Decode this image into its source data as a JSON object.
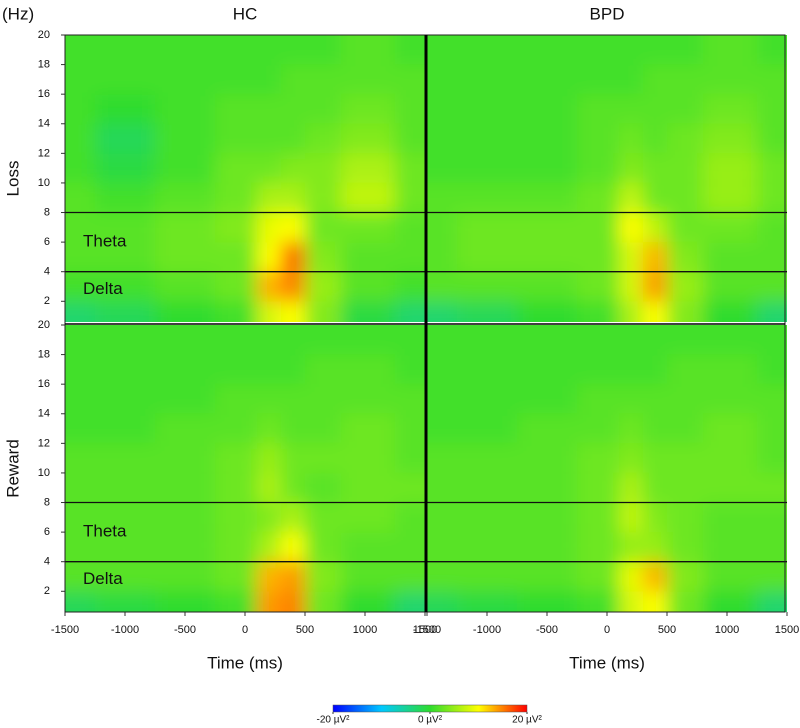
{
  "chart_data": [
    {
      "type": "heatmap",
      "title": "HC",
      "row_label": "Loss",
      "ylabel": "(Hz)",
      "x": [
        -1500,
        -1000,
        -500,
        0,
        200,
        400,
        600,
        1000,
        1500
      ],
      "y": [
        1,
        3,
        5,
        7,
        9,
        11,
        13,
        15,
        17,
        19
      ],
      "values": [
        [
          -3,
          -2,
          0,
          1,
          8,
          10,
          4,
          -1,
          -3
        ],
        [
          1,
          1,
          2,
          3,
          13,
          15,
          5,
          2,
          1
        ],
        [
          2,
          2,
          3,
          3,
          10,
          16,
          4,
          2,
          2
        ],
        [
          2,
          2,
          3,
          4,
          9,
          10,
          3,
          3,
          2
        ],
        [
          2,
          1,
          2,
          3,
          6,
          6,
          4,
          7,
          3
        ],
        [
          1,
          -1,
          1,
          3,
          3,
          4,
          4,
          6,
          3
        ],
        [
          1,
          -2,
          1,
          2,
          2,
          2,
          3,
          4,
          2
        ],
        [
          1,
          0,
          1,
          2,
          2,
          2,
          2,
          3,
          2
        ],
        [
          1,
          1,
          1,
          1,
          1,
          2,
          2,
          2,
          2
        ],
        [
          1,
          1,
          1,
          1,
          1,
          1,
          1,
          2,
          1
        ]
      ],
      "xlim": [
        -1500,
        1500
      ],
      "ylim": [
        0.6,
        20
      ],
      "yticks": [
        2,
        4,
        6,
        8,
        10,
        12,
        14,
        16,
        18,
        20
      ],
      "band_lines": [
        8,
        4
      ],
      "band_labels": [
        "Theta",
        "Delta"
      ]
    },
    {
      "type": "heatmap",
      "title": "BPD",
      "x": [
        -1500,
        -1000,
        -500,
        0,
        200,
        400,
        600,
        1000,
        1500
      ],
      "y": [
        1,
        3,
        5,
        7,
        9,
        11,
        13,
        15,
        17,
        19
      ],
      "values": [
        [
          -3,
          -2,
          0,
          1,
          6,
          10,
          4,
          0,
          -3
        ],
        [
          2,
          2,
          2,
          3,
          8,
          14,
          5,
          2,
          2
        ],
        [
          2,
          3,
          3,
          3,
          8,
          13,
          4,
          2,
          2
        ],
        [
          2,
          3,
          3,
          3,
          10,
          7,
          3,
          3,
          2
        ],
        [
          2,
          2,
          2,
          3,
          7,
          3,
          3,
          5,
          3
        ],
        [
          1,
          1,
          1,
          2,
          4,
          3,
          3,
          5,
          3
        ],
        [
          1,
          1,
          1,
          2,
          3,
          2,
          3,
          4,
          2
        ],
        [
          1,
          1,
          1,
          2,
          2,
          2,
          2,
          3,
          2
        ],
        [
          1,
          1,
          1,
          1,
          1,
          2,
          2,
          2,
          2
        ],
        [
          1,
          1,
          1,
          1,
          1,
          1,
          1,
          2,
          1
        ]
      ],
      "xlim": [
        -1500,
        1500
      ],
      "ylim": [
        0.6,
        20
      ],
      "band_lines": [
        8,
        4
      ]
    },
    {
      "type": "heatmap",
      "row_label": "Reward",
      "xlabel": "Time (ms)",
      "x": [
        -1500,
        -1000,
        -500,
        0,
        200,
        400,
        600,
        1000,
        1500
      ],
      "y": [
        1,
        3,
        5,
        7,
        9,
        11,
        13,
        15,
        17,
        19
      ],
      "values": [
        [
          -2,
          -1,
          0,
          1,
          14,
          15,
          3,
          0,
          -3
        ],
        [
          2,
          2,
          2,
          3,
          13,
          14,
          4,
          2,
          2
        ],
        [
          2,
          2,
          2,
          3,
          6,
          10,
          3,
          2,
          2
        ],
        [
          2,
          2,
          2,
          3,
          4,
          6,
          3,
          3,
          2
        ],
        [
          2,
          2,
          2,
          3,
          6,
          3,
          2,
          3,
          3
        ],
        [
          2,
          2,
          2,
          3,
          5,
          3,
          3,
          3,
          2
        ],
        [
          1,
          1,
          2,
          2,
          3,
          2,
          2,
          3,
          2
        ],
        [
          1,
          1,
          1,
          2,
          2,
          2,
          2,
          2,
          2
        ],
        [
          1,
          1,
          1,
          1,
          1,
          1,
          2,
          2,
          1
        ],
        [
          1,
          1,
          1,
          1,
          1,
          1,
          1,
          1,
          1
        ]
      ],
      "xlim": [
        -1500,
        1500
      ],
      "ylim": [
        0.6,
        20
      ],
      "xticks": [
        -1500,
        -1000,
        -500,
        0,
        500,
        1000,
        1500
      ],
      "yticks": [
        2,
        4,
        6,
        8,
        10,
        12,
        14,
        16,
        18,
        20
      ],
      "band_lines": [
        8,
        4
      ],
      "band_labels": [
        "Theta",
        "Delta"
      ]
    },
    {
      "type": "heatmap",
      "xlabel": "Time (ms)",
      "x": [
        -1500,
        -1000,
        -500,
        0,
        200,
        400,
        600,
        1000,
        1500
      ],
      "y": [
        1,
        3,
        5,
        7,
        9,
        11,
        13,
        15,
        17,
        19
      ],
      "values": [
        [
          -2,
          -1,
          0,
          1,
          8,
          10,
          3,
          0,
          -3
        ],
        [
          2,
          2,
          2,
          3,
          9,
          13,
          4,
          2,
          2
        ],
        [
          2,
          2,
          2,
          3,
          5,
          5,
          3,
          2,
          2
        ],
        [
          2,
          2,
          2,
          3,
          7,
          4,
          3,
          2,
          2
        ],
        [
          2,
          2,
          2,
          3,
          6,
          3,
          3,
          3,
          3
        ],
        [
          2,
          2,
          2,
          3,
          4,
          3,
          3,
          3,
          2
        ],
        [
          1,
          1,
          2,
          2,
          3,
          2,
          2,
          3,
          2
        ],
        [
          1,
          1,
          1,
          2,
          2,
          2,
          2,
          2,
          2
        ],
        [
          1,
          1,
          1,
          1,
          1,
          1,
          2,
          2,
          1
        ],
        [
          1,
          1,
          1,
          1,
          1,
          1,
          1,
          1,
          1
        ]
      ],
      "xlim": [
        -1500,
        1500
      ],
      "ylim": [
        0.6,
        20
      ],
      "xticks": [
        -1500,
        -1000,
        -500,
        0,
        500,
        1000,
        1500
      ],
      "band_lines": [
        8,
        4
      ]
    }
  ],
  "colorbar": {
    "range": [
      -20,
      20
    ],
    "colors": [
      "#0000ff",
      "#00c8ff",
      "#2edc2e",
      "#ffff00",
      "#ff0000"
    ],
    "ticks": [
      {
        "value": -20,
        "label": "-20 µV²"
      },
      {
        "value": 0,
        "label": "0 µV²"
      },
      {
        "value": 20,
        "label": "20 µV²"
      }
    ]
  }
}
